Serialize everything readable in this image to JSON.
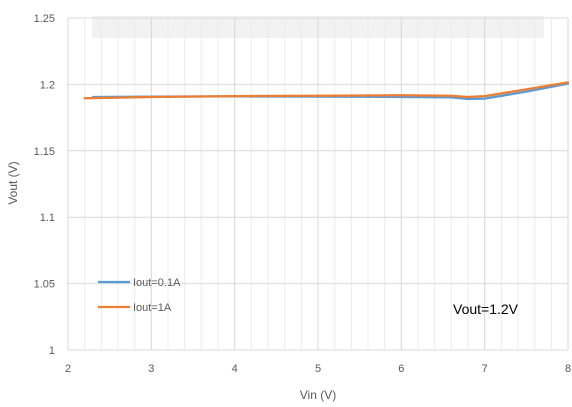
{
  "chart_data": {
    "type": "line",
    "xlabel": "Vin (V)",
    "ylabel": "Vout (V)",
    "xlim": [
      2,
      8
    ],
    "ylim": [
      1,
      1.25
    ],
    "xticks": [
      2,
      3,
      4,
      5,
      6,
      7,
      8
    ],
    "yticks": [
      1,
      1.05,
      1.1,
      1.15,
      1.2,
      1.25
    ],
    "ytick_labels": [
      "1",
      "1.05",
      "1.1",
      "1.15",
      "1.2",
      "1.25"
    ],
    "grid": "vertical-and-horizontal",
    "legend_placement": "bottom-left",
    "annotation": "Vout=1.2V",
    "series": [
      {
        "name": "Iout=0.1A",
        "color": "#5B9BD5",
        "x": [
          2.3,
          3,
          4,
          5,
          6,
          6.6,
          6.8,
          7,
          7.5,
          8
        ],
        "y": [
          1.1905,
          1.1908,
          1.191,
          1.1908,
          1.1905,
          1.1902,
          1.189,
          1.1893,
          1.1945,
          1.2005
        ]
      },
      {
        "name": "Iout=1A",
        "color": "#ED7D31",
        "x": [
          2.2,
          3,
          4,
          5,
          6,
          6.6,
          6.8,
          7,
          7.5,
          8
        ],
        "y": [
          1.1895,
          1.1905,
          1.1912,
          1.1915,
          1.1918,
          1.1915,
          1.1905,
          1.1912,
          1.1962,
          1.2015
        ]
      }
    ]
  }
}
